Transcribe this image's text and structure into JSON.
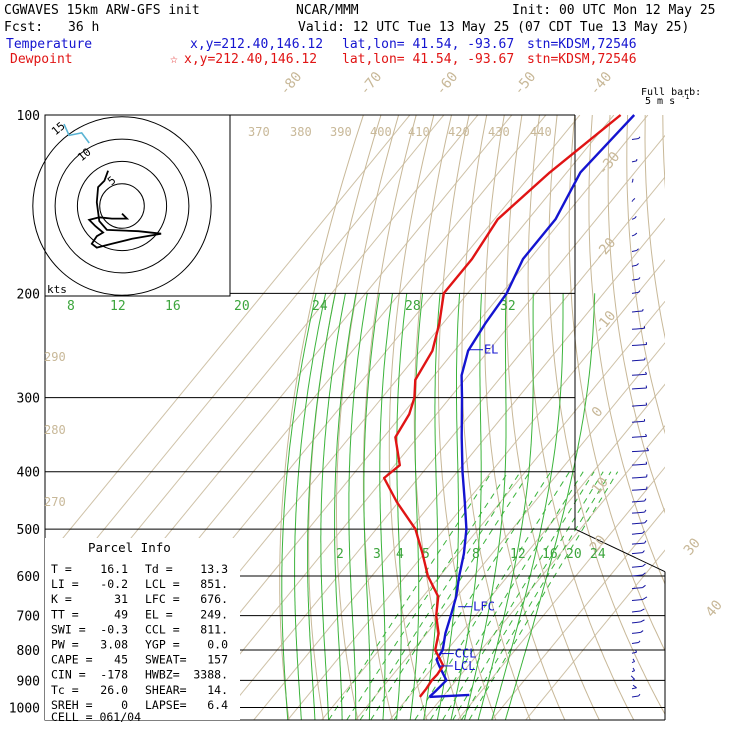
{
  "header": {
    "model": "CGWAVES 15km ARW-GFS init",
    "org": "NCAR/MMM",
    "init": "Init: 00 UTC Mon 12 May 25",
    "fcst_label": "Fcst:",
    "fcst_value": "36 h",
    "valid": "Valid: 12 UTC Tue 13 May 25 (07 CDT Tue 13 May 25)",
    "temperature": {
      "label": "Temperature",
      "xy": "x,y=212.40,146.12",
      "latlon": "lat,lon= 41.54, -93.67",
      "stn": "stn=KDSM,72546"
    },
    "dewpoint": {
      "label": "Dewpoint",
      "star": "☆",
      "xy": "x,y=212.40,146.12",
      "latlon": "lat,lon= 41.54, -93.67",
      "stn": "stn=KDSM,72546"
    }
  },
  "colors": {
    "temperature": "#1414d0",
    "dewpoint": "#e01414",
    "isotherm": "#cfc2a8",
    "isotherm_label": "#c8b898",
    "dry_adiabat": "#c8b898",
    "moist_adiabat": "#3cb43c",
    "mixing_ratio": "#3cb43c",
    "isobar": "#000000"
  },
  "barb_legend": {
    "line1": "Full barb:",
    "line2": "5 m s",
    "exp": "-1"
  },
  "hodograph": {
    "rings": [
      "15",
      "10",
      "5"
    ],
    "unit": "kts"
  },
  "parcel_info": {
    "title": "Parcel Info",
    "rows": [
      [
        "T  =",
        "16.1",
        "Td =",
        "13.3"
      ],
      [
        "LI =",
        "-0.2",
        "LCL =",
        "851."
      ],
      [
        "K  =",
        "31",
        "LFC =",
        "676."
      ],
      [
        "TT =",
        "49",
        "EL =",
        "249."
      ],
      [
        "SWI =",
        "-0.3",
        "CCL =",
        "811."
      ],
      [
        "PW =",
        "3.08",
        "YGP =",
        "0.0"
      ],
      [
        "CAPE =",
        "45",
        "SWEAT=",
        "157"
      ],
      [
        "CIN =",
        "-178",
        "HWBZ=",
        "3388."
      ],
      [
        "Tc =",
        "26.0",
        "SHEAR=",
        "14."
      ],
      [
        "SREH =",
        "0",
        "LAPSE=",
        "6.4"
      ]
    ],
    "cell": "CELL = 061/04"
  },
  "chart_data": {
    "type": "line",
    "pressure_levels": [
      100,
      200,
      300,
      400,
      500,
      600,
      700,
      800,
      900,
      1000
    ],
    "isotherm_labels": [
      "-80",
      "-70",
      "-60",
      "-50",
      "-40",
      "-30",
      "-20",
      "-10",
      "0",
      "10",
      "20",
      "30",
      "40"
    ],
    "theta_labels": [
      "370",
      "380",
      "390",
      "400",
      "410",
      "420",
      "430",
      "440",
      "290",
      "280",
      "270"
    ],
    "mixing_ratio_upper_labels": [
      "8",
      "12",
      "16",
      "20",
      "24",
      "28",
      "32"
    ],
    "mixing_ratio_lower_labels": [
      "2",
      "3",
      "4",
      "5",
      "8",
      "12",
      "16",
      "20",
      "24"
    ],
    "markers": [
      {
        "label": "EL",
        "p": 249
      },
      {
        "label": "LFC",
        "p": 676
      },
      {
        "label": "CCL",
        "p": 811
      },
      {
        "label": "LCL",
        "p": 851
      }
    ],
    "series": [
      {
        "name": "Temperature",
        "points": [
          [
            100,
            -64.0
          ],
          [
            125,
            -66.0
          ],
          [
            150,
            -62.0
          ],
          [
            175,
            -62.0
          ],
          [
            200,
            -58.5
          ],
          [
            225,
            -57.5
          ],
          [
            250,
            -56.0
          ],
          [
            275,
            -52.0
          ],
          [
            300,
            -46.5
          ],
          [
            350,
            -37.0
          ],
          [
            400,
            -28.5
          ],
          [
            450,
            -20.5
          ],
          [
            500,
            -13.5
          ],
          [
            550,
            -8.3
          ],
          [
            600,
            -4.3
          ],
          [
            650,
            -0.2
          ],
          [
            700,
            2.8
          ],
          [
            750,
            5.5
          ],
          [
            800,
            8.7
          ],
          [
            830,
            9.2
          ],
          [
            850,
            11.4
          ],
          [
            900,
            17.1
          ],
          [
            940,
            16.5
          ],
          [
            960,
            16.1
          ]
        ]
      },
      {
        "name": "Dewpoint",
        "points": [
          [
            100,
            -68.0
          ],
          [
            125,
            -75.0
          ],
          [
            150,
            -79.0
          ],
          [
            175,
            -77.0
          ],
          [
            200,
            -77.0
          ],
          [
            225,
            -71.0
          ],
          [
            250,
            -66.5
          ],
          [
            280,
            -64.5
          ],
          [
            300,
            -60.5
          ],
          [
            320,
            -58.0
          ],
          [
            350,
            -56.5
          ],
          [
            390,
            -48.5
          ],
          [
            410,
            -50.0
          ],
          [
            450,
            -40.5
          ],
          [
            500,
            -28.5
          ],
          [
            550,
            -20.5
          ],
          [
            600,
            -13.5
          ],
          [
            650,
            -5.5
          ],
          [
            700,
            -1.5
          ],
          [
            750,
            3.5
          ],
          [
            800,
            6.5
          ],
          [
            850,
            12.6
          ],
          [
            880,
            13.0
          ],
          [
            900,
            12.8
          ],
          [
            930,
            13.2
          ],
          [
            960,
            13.3
          ]
        ]
      }
    ],
    "wind_barbs": [
      [
        110,
        0,
        -3
      ],
      [
        120,
        -1,
        -3
      ],
      [
        130,
        -3,
        -3
      ],
      [
        140,
        -3,
        -5
      ],
      [
        150,
        -2,
        -5
      ],
      [
        160,
        -2,
        -6
      ],
      [
        170,
        -1,
        -7
      ],
      [
        180,
        -1,
        -7
      ],
      [
        190,
        0,
        -7
      ],
      [
        200,
        0,
        -6
      ],
      [
        215,
        2,
        -6
      ],
      [
        230,
        3,
        -6
      ],
      [
        245,
        4,
        -5
      ],
      [
        260,
        3,
        -5
      ],
      [
        275,
        4,
        -6
      ],
      [
        290,
        4,
        -5
      ],
      [
        310,
        4,
        -5
      ],
      [
        330,
        3,
        -6
      ],
      [
        350,
        4,
        -6
      ],
      [
        370,
        5,
        -5
      ],
      [
        390,
        4,
        -5
      ],
      [
        410,
        4,
        -4
      ],
      [
        430,
        4,
        -4
      ],
      [
        450,
        3,
        -4
      ],
      [
        470,
        3,
        -4
      ],
      [
        490,
        3,
        -3
      ],
      [
        510,
        2,
        -4
      ],
      [
        530,
        3,
        -4
      ],
      [
        550,
        2,
        -4
      ],
      [
        580,
        2,
        -3
      ],
      [
        600,
        2,
        -3
      ],
      [
        630,
        2,
        -3
      ],
      [
        660,
        2,
        -2
      ],
      [
        690,
        1,
        -2
      ],
      [
        720,
        1,
        -2
      ],
      [
        750,
        1,
        -3
      ],
      [
        780,
        0,
        -2
      ],
      [
        810,
        -1,
        -2
      ],
      [
        840,
        -2,
        -2
      ],
      [
        870,
        -2,
        -2
      ],
      [
        900,
        -2,
        -1
      ],
      [
        930,
        -1,
        -1
      ],
      [
        960,
        0,
        -1
      ]
    ],
    "hodograph_trace": [
      [
        0.0,
        -0.6
      ],
      [
        0.4,
        -1.0
      ],
      [
        -0.8,
        -1.0
      ],
      [
        -1.8,
        -0.9
      ],
      [
        -2.6,
        -1.1
      ],
      [
        -2.1,
        -1.6
      ],
      [
        -1.5,
        -2.1
      ],
      [
        -2.0,
        -2.4
      ],
      [
        -2.4,
        -3.0
      ],
      [
        -2.0,
        -3.3
      ],
      [
        -0.8,
        -3.0
      ],
      [
        0.8,
        -2.6
      ],
      [
        3.1,
        -2.2
      ],
      [
        1.3,
        -2.0
      ],
      [
        -1.2,
        -1.9
      ],
      [
        -1.8,
        -1.2
      ],
      [
        -2.0,
        0.3
      ],
      [
        -1.9,
        1.5
      ],
      [
        -1.4,
        2.0
      ],
      [
        -1.1,
        2.8
      ]
    ],
    "hodograph_upper": [
      [
        -2.6,
        5.0
      ],
      [
        -3.2,
        5.8
      ],
      [
        -4.2,
        5.6
      ],
      [
        -4.6,
        6.5
      ]
    ]
  }
}
